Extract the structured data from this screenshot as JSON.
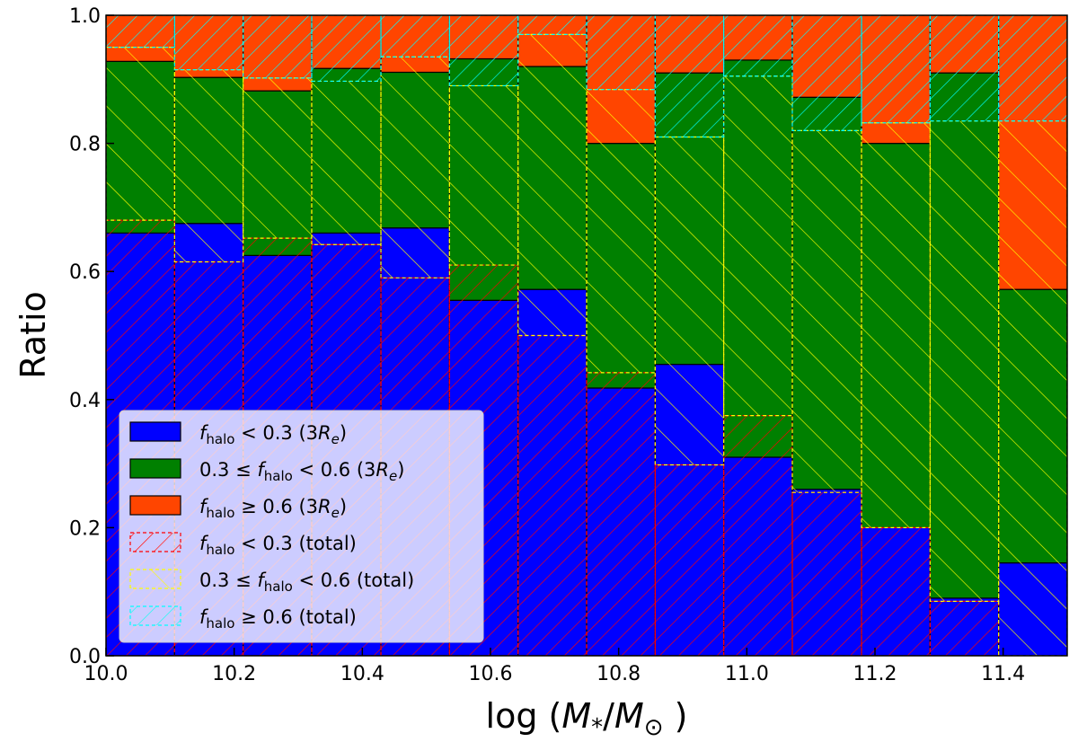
{
  "chart_data": {
    "type": "bar",
    "subtype": "stacked-overlay",
    "xlabel": "log (M*/M⊙)",
    "ylabel": "Ratio",
    "xlim": [
      10.0,
      11.5
    ],
    "ylim": [
      0.0,
      1.0
    ],
    "xticks": [
      "10.0",
      "10.2",
      "10.4",
      "10.6",
      "10.8",
      "11.0",
      "11.2",
      "11.4"
    ],
    "yticks": [
      "0.0",
      "0.2",
      "0.4",
      "0.6",
      "0.8",
      "1.0"
    ],
    "bin_edges": [
      10.0,
      10.107,
      10.214,
      10.321,
      10.429,
      10.536,
      10.643,
      10.75,
      10.857,
      10.964,
      11.071,
      11.179,
      11.286,
      11.393,
      11.5
    ],
    "series_3re": [
      {
        "name": "f_halo < 0.3 (3R_e)",
        "color": "#0000ff",
        "values": [
          0.66,
          0.675,
          0.625,
          0.66,
          0.668,
          0.555,
          0.572,
          0.418,
          0.455,
          0.31,
          0.26,
          0.2,
          0.09,
          0.145
        ]
      },
      {
        "name": "0.3 ≤ f_halo < 0.6 (3R_e)",
        "color": "#008000",
        "values": [
          0.268,
          0.228,
          0.257,
          0.257,
          0.243,
          0.377,
          0.348,
          0.382,
          0.455,
          0.62,
          0.612,
          0.6,
          0.82,
          0.427
        ]
      },
      {
        "name": "f_halo ≥ 0.6 (3R_e)",
        "color": "#ff4500",
        "values": [
          0.072,
          0.097,
          0.118,
          0.083,
          0.089,
          0.068,
          0.08,
          0.2,
          0.09,
          0.07,
          0.128,
          0.2,
          0.09,
          0.428
        ]
      }
    ],
    "series_total": [
      {
        "name": "f_halo < 0.3 (total)",
        "color": "#ff0000",
        "hatch": "//",
        "values": [
          0.68,
          0.615,
          0.652,
          0.642,
          0.59,
          0.61,
          0.5,
          0.442,
          0.298,
          0.375,
          0.255,
          0.2,
          0.085,
          0.0
        ]
      },
      {
        "name": "0.3 ≤ f_halo < 0.6 (total)",
        "color": "#ffff00",
        "hatch": "\\\\",
        "values": [
          0.27,
          0.3,
          0.25,
          0.255,
          0.345,
          0.28,
          0.47,
          0.442,
          0.512,
          0.53,
          0.565,
          0.632,
          0.75,
          0.835
        ]
      },
      {
        "name": "f_halo ≥ 0.6 (total)",
        "color": "#00ffff",
        "hatch": "//",
        "values": [
          0.05,
          0.085,
          0.098,
          0.103,
          0.065,
          0.11,
          0.03,
          0.118,
          0.19,
          0.095,
          0.18,
          0.168,
          0.165,
          0.165
        ]
      }
    ],
    "legend": {
      "placement": "lower-left",
      "entries": [
        {
          "label_tex": "f_halo < 0.3 (3R_e)",
          "pre": "",
          "sym": "f",
          "sub": "halo",
          "post": " < 0.3 (3",
          "re": true,
          "close": ")"
        },
        {
          "label_tex": "0.3 ≤ f_halo < 0.6 (3R_e)",
          "pre": "0.3 ≤ ",
          "sym": "f",
          "sub": "halo",
          "post": " < 0.6 (3",
          "re": true,
          "close": ")"
        },
        {
          "label_tex": "f_halo ≥ 0.6 (3R_e)",
          "pre": "",
          "sym": "f",
          "sub": "halo",
          "post": " ≥ 0.6 (3",
          "re": true,
          "close": ")"
        },
        {
          "label_tex": "f_halo < 0.3 (total)",
          "pre": "",
          "sym": "f",
          "sub": "halo",
          "post": " < 0.3 (total)",
          "re": false,
          "close": ""
        },
        {
          "label_tex": "0.3 ≤ f_halo < 0.6 (total)",
          "pre": "0.3 ≤ ",
          "sym": "f",
          "sub": "halo",
          "post": " < 0.6 (total)",
          "re": false,
          "close": ""
        },
        {
          "label_tex": "f_halo ≥ 0.6 (total)",
          "pre": "",
          "sym": "f",
          "sub": "halo",
          "post": " ≥ 0.6 (total)",
          "re": false,
          "close": ""
        }
      ]
    }
  }
}
